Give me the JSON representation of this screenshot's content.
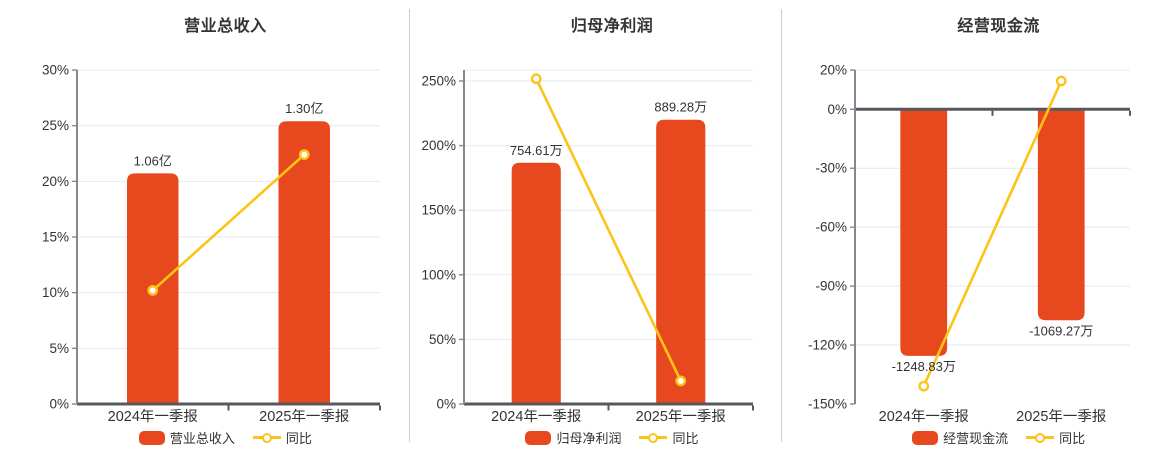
{
  "styles": {
    "background": "#ffffff",
    "bar_color": "#e8481d",
    "line_color": "#fcc418",
    "grid_color": "#e4e9f3",
    "y_axis_color": "#85898f",
    "x_axis_color": "#55595f",
    "text_color": "#333333",
    "divider_color": "#cccccc"
  },
  "chart_data": [
    {
      "type": "bar+line",
      "title": "营业总收入",
      "categories": [
        "2024年一季报",
        "2025年一季报"
      ],
      "y_axis": {
        "min": 0,
        "max": 30,
        "unit": "%",
        "tick_values": [
          30,
          25,
          20,
          15,
          10,
          5,
          0
        ],
        "tick_labels": [
          "30%",
          "25%",
          "20%",
          "15%",
          "10%",
          "5%",
          "0%"
        ],
        "zero_axis": true,
        "top_border": false,
        "grid": true
      },
      "bar_series": {
        "name": "营业总收入",
        "color": "#e8481d",
        "display_values": [
          "1.06亿",
          "1.30亿"
        ],
        "plotted_values": [
          20.71,
          25.4
        ],
        "label_position": "above"
      },
      "line_series": {
        "name": "同比",
        "color": "#fcc418",
        "values_pct": [
          10.2,
          22.4
        ]
      },
      "legend_position": "bottom"
    },
    {
      "type": "bar+line",
      "title": "归母净利润",
      "categories": [
        "2024年一季报",
        "2025年一季报"
      ],
      "y_axis": {
        "min": 0,
        "max": 258.5,
        "unit": "%",
        "tick_values": [
          250,
          200,
          150,
          100,
          50,
          0
        ],
        "tick_labels": [
          "250%",
          "200%",
          "150%",
          "100%",
          "50%",
          "0%"
        ],
        "zero_axis": true,
        "top_border": true,
        "grid": true
      },
      "bar_series": {
        "name": "归母净利润",
        "color": "#e8481d",
        "display_values": [
          "754.61万",
          "889.28万"
        ],
        "plotted_values": [
          186.7,
          220
        ],
        "label_position": "above"
      },
      "line_series": {
        "name": "同比",
        "color": "#fcc418",
        "values_pct": [
          251.7,
          17.85
        ]
      },
      "legend_position": "bottom"
    },
    {
      "type": "bar+line",
      "title": "经营现金流",
      "categories": [
        "2024年一季报",
        "2025年一季报"
      ],
      "y_axis": {
        "min": -150,
        "max": 20,
        "unit": "%",
        "tick_values": [
          20,
          0,
          -30,
          -60,
          -90,
          -120,
          -150
        ],
        "tick_labels": [
          "20%",
          "0%",
          "-30%",
          "-60%",
          "-90%",
          "-120%",
          "-150%"
        ],
        "zero_axis": true,
        "top_border": false,
        "grid": true
      },
      "bar_series": {
        "name": "经营现金流",
        "color": "#e8481d",
        "display_values": [
          "-1248.83万",
          "-1069.27万"
        ],
        "plotted_values": [
          -125.5,
          -107.4
        ],
        "label_position": "below"
      },
      "line_series": {
        "name": "同比",
        "color": "#fcc418",
        "values_pct": [
          -140.9,
          14.38
        ]
      },
      "legend_position": "bottom"
    }
  ]
}
